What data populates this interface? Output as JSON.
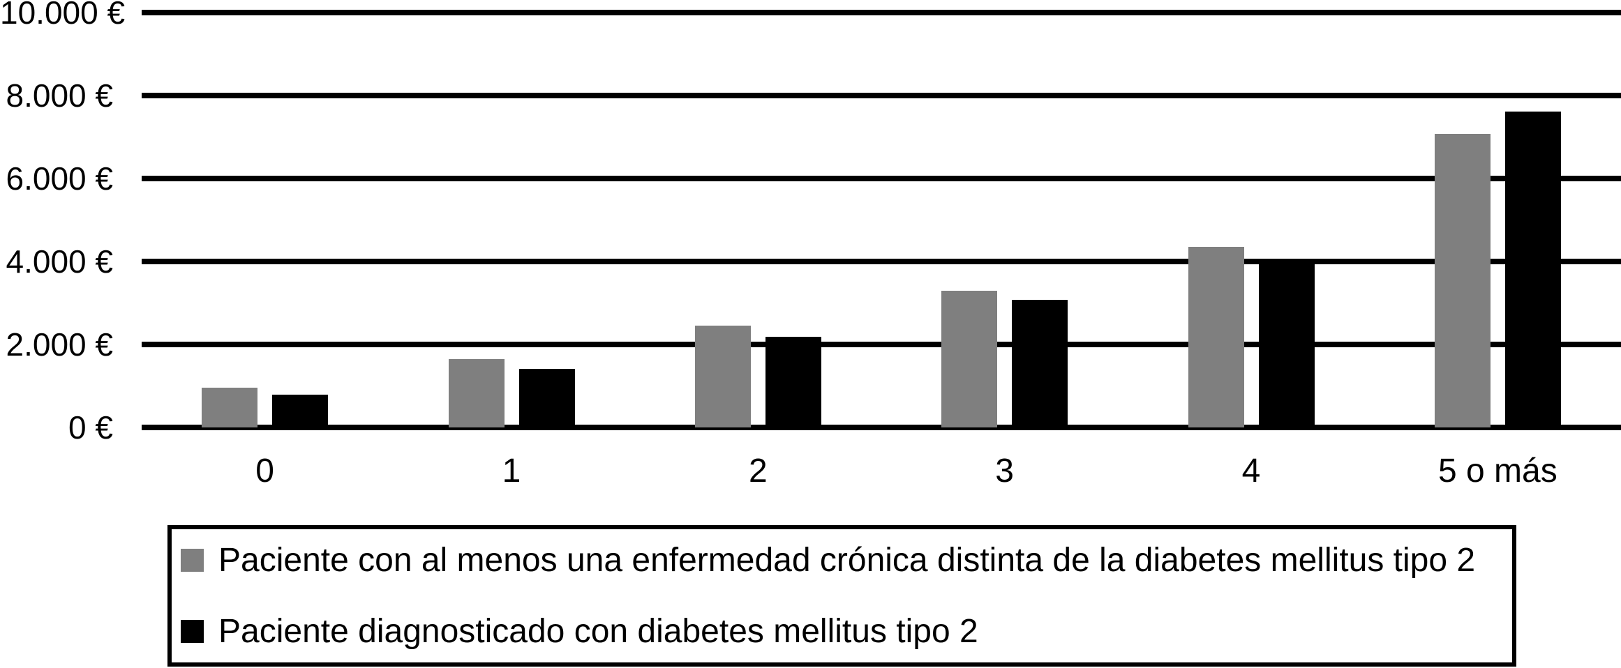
{
  "chart_data": {
    "type": "bar",
    "categories": [
      "0",
      "1",
      "2",
      "3",
      "4",
      "5 o más"
    ],
    "series": [
      {
        "name": "Paciente con al menos una enfermedad crónica distinta de la diabetes mellitus tipo 2",
        "color": "#7f7f7f",
        "values": [
          950,
          1645,
          2450,
          3300,
          4360,
          7075
        ]
      },
      {
        "name": "Paciente diagnosticado con diabetes mellitus tipo 2",
        "color": "#000000",
        "values": [
          795,
          1410,
          2185,
          3080,
          4065,
          7610
        ]
      }
    ],
    "title": "",
    "xlabel": "",
    "ylabel": "",
    "y_ticks": [
      {
        "value": 0,
        "label": "0 €"
      },
      {
        "value": 2000,
        "label": "2.000 €"
      },
      {
        "value": 4000,
        "label": "4.000 €"
      },
      {
        "value": 6000,
        "label": "6.000 €"
      },
      {
        "value": 8000,
        "label": "8.000 €"
      },
      {
        "value": 10000,
        "label": "10.000 €"
      }
    ],
    "ylim": [
      0,
      10000
    ],
    "grid": true,
    "gridline_color": "#000000",
    "background_color": "#ffffff",
    "legend_position": "bottom-box"
  }
}
